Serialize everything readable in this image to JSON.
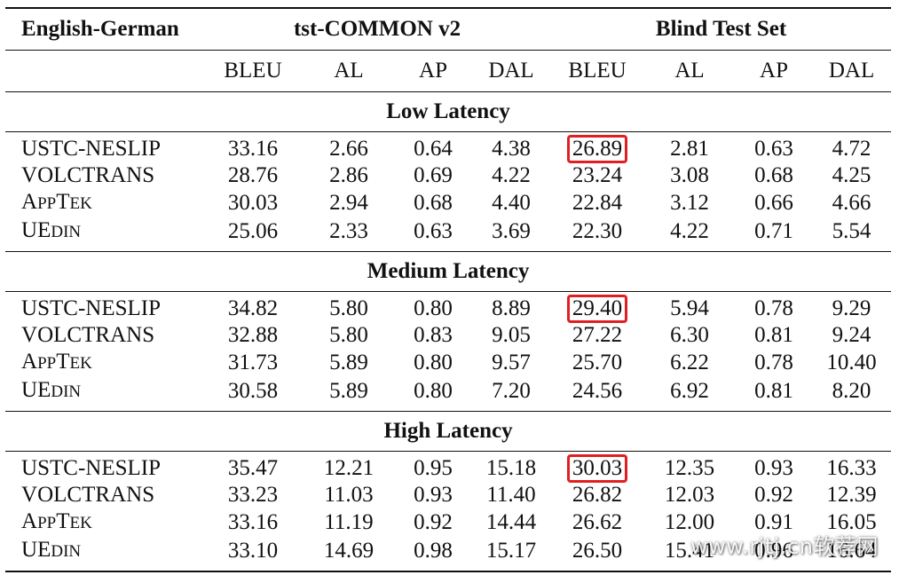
{
  "table": {
    "corner": "English-German",
    "groups": [
      "tst-COMMON v2",
      "Blind Test Set"
    ],
    "metrics": [
      "BLEU",
      "AL",
      "AP",
      "DAL",
      "BLEU",
      "AL",
      "AP",
      "DAL"
    ],
    "highlight_color": "#e02020",
    "sections": [
      {
        "title": "Low Latency",
        "rows": [
          {
            "system": "USTC-NESLIP",
            "values": [
              "33.16",
              "2.66",
              "0.64",
              "4.38",
              "26.89",
              "2.81",
              "0.63",
              "4.72"
            ],
            "highlight": 4
          },
          {
            "system": "VOLCTRANS",
            "values": [
              "28.76",
              "2.86",
              "0.69",
              "4.22",
              "23.24",
              "3.08",
              "0.68",
              "4.25"
            ]
          },
          {
            "system": "AppTek",
            "values": [
              "30.03",
              "2.94",
              "0.68",
              "4.40",
              "22.84",
              "3.12",
              "0.66",
              "4.66"
            ]
          },
          {
            "system": "UEdin",
            "values": [
              "25.06",
              "2.33",
              "0.63",
              "3.69",
              "22.30",
              "4.22",
              "0.71",
              "5.54"
            ]
          }
        ]
      },
      {
        "title": "Medium Latency",
        "rows": [
          {
            "system": "USTC-NESLIP",
            "values": [
              "34.82",
              "5.80",
              "0.80",
              "8.89",
              "29.40",
              "5.94",
              "0.78",
              "9.29"
            ],
            "highlight": 4
          },
          {
            "system": "VOLCTRANS",
            "values": [
              "32.88",
              "5.80",
              "0.83",
              "9.05",
              "27.22",
              "6.30",
              "0.81",
              "9.24"
            ]
          },
          {
            "system": "AppTek",
            "values": [
              "31.73",
              "5.89",
              "0.80",
              "9.57",
              "25.70",
              "6.22",
              "0.78",
              "10.40"
            ]
          },
          {
            "system": "UEdin",
            "values": [
              "30.58",
              "5.89",
              "0.80",
              "7.20",
              "24.56",
              "6.92",
              "0.81",
              "8.20"
            ]
          }
        ]
      },
      {
        "title": "High Latency",
        "rows": [
          {
            "system": "USTC-NESLIP",
            "values": [
              "35.47",
              "12.21",
              "0.95",
              "15.18",
              "30.03",
              "12.35",
              "0.93",
              "16.33"
            ],
            "highlight": 4
          },
          {
            "system": "VOLCTRANS",
            "values": [
              "33.23",
              "11.03",
              "0.93",
              "11.40",
              "26.82",
              "12.03",
              "0.92",
              "12.39"
            ]
          },
          {
            "system": "AppTek",
            "values": [
              "33.16",
              "11.19",
              "0.92",
              "14.44",
              "26.62",
              "12.00",
              "0.91",
              "16.05"
            ]
          },
          {
            "system": "UEdin",
            "values": [
              "33.10",
              "14.69",
              "0.98",
              "15.17",
              "26.50",
              "15.41",
              "0.96",
              "16.64"
            ]
          }
        ]
      }
    ]
  },
  "watermark": "www.rjtj.cn软荐网"
}
